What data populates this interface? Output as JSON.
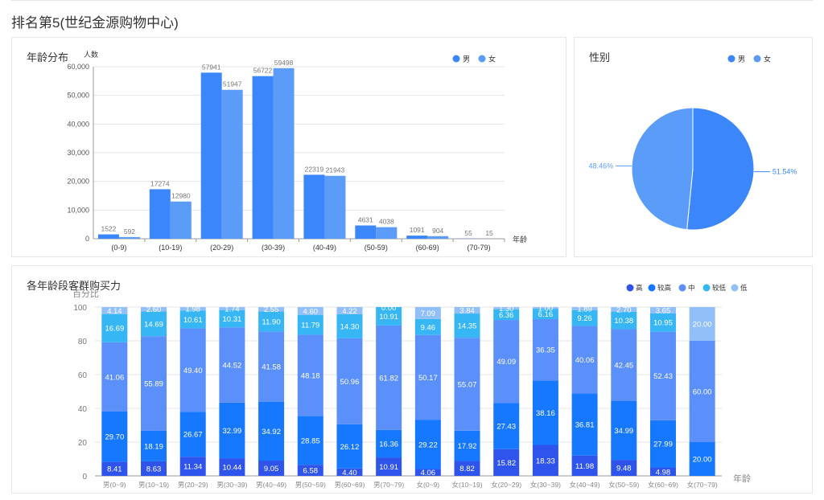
{
  "page": {
    "title": "排名第5(世纪金源购物中心)"
  },
  "colors": {
    "male": "#3a86fa",
    "female": "#5b9cf8",
    "levels": [
      "#2f54eb",
      "#1677ff",
      "#5b8ff9",
      "#36b6f5",
      "#91bff8"
    ]
  },
  "chart_data": [
    {
      "id": "age-dist",
      "type": "bar",
      "title": "年龄分布",
      "ylabel": "人数",
      "xlabel": "年龄",
      "categories": [
        "(0-9)",
        "(10-19)",
        "(20-29)",
        "(30-39)",
        "(40-49)",
        "(50-59)",
        "(60-69)",
        "(70-79)"
      ],
      "series": [
        {
          "name": "男",
          "values": [
            1522,
            17274,
            57941,
            56722,
            22319,
            4631,
            1091,
            55
          ]
        },
        {
          "name": "女",
          "values": [
            592,
            12980,
            51947,
            59498,
            21943,
            4038,
            904,
            15
          ]
        }
      ],
      "ylim": [
        0,
        60000
      ],
      "yticks": [
        "0",
        "10,000",
        "20,000",
        "30,000",
        "40,000",
        "50,000",
        "60,000"
      ],
      "legend": "top-right",
      "grid": true
    },
    {
      "id": "gender",
      "type": "pie",
      "title": "性别",
      "slices": [
        {
          "name": "男",
          "value": 51.54,
          "label": "51.54%"
        },
        {
          "name": "女",
          "value": 48.46,
          "label": "48.46%"
        }
      ],
      "legend": "top-right"
    },
    {
      "id": "purchase-power",
      "type": "bar",
      "stacked": true,
      "title": "各年龄段客群购买力",
      "ylabel": "百分比",
      "xlabel": "年龄",
      "ylim": [
        0,
        100
      ],
      "yticks": [
        "0",
        "20",
        "40",
        "60",
        "80",
        "100"
      ],
      "categories": [
        "男(0~9)",
        "男(10~19)",
        "男(20~29)",
        "男(30~39)",
        "男(40~49)",
        "男(50~59)",
        "男(60~69)",
        "男(70~79)",
        "女(0~9)",
        "女(10~19)",
        "女(20~29)",
        "女(30~39)",
        "女(40~49)",
        "女(50~59)",
        "女(60~69)",
        "女(70~79)"
      ],
      "series": [
        {
          "name": "高",
          "values": [
            8.41,
            8.63,
            11.34,
            10.44,
            9.05,
            6.58,
            4.4,
            10.91,
            4.06,
            8.82,
            15.82,
            18.33,
            11.98,
            9.48,
            4.98,
            0
          ]
        },
        {
          "name": "较高",
          "values": [
            29.7,
            18.19,
            26.67,
            32.99,
            34.92,
            28.85,
            26.12,
            16.36,
            29.22,
            17.92,
            27.43,
            38.16,
            36.81,
            34.99,
            27.99,
            20.0
          ]
        },
        {
          "name": "中",
          "values": [
            41.06,
            55.89,
            49.4,
            44.52,
            41.58,
            48.18,
            50.96,
            61.82,
            50.17,
            55.07,
            49.09,
            36.35,
            40.06,
            42.45,
            52.43,
            60.0
          ]
        },
        {
          "name": "较低",
          "values": [
            16.69,
            14.69,
            10.61,
            10.31,
            11.9,
            11.79,
            14.3,
            10.91,
            9.46,
            14.35,
            6.36,
            6.16,
            9.26,
            10.38,
            10.95,
            0
          ]
        },
        {
          "name": "低",
          "values": [
            4.14,
            2.6,
            1.98,
            1.74,
            2.55,
            4.6,
            4.22,
            0.0,
            7.09,
            3.84,
            1.3,
            1.0,
            1.89,
            2.7,
            3.65,
            20.0
          ]
        }
      ],
      "legend": "top-right",
      "grid": true
    }
  ]
}
